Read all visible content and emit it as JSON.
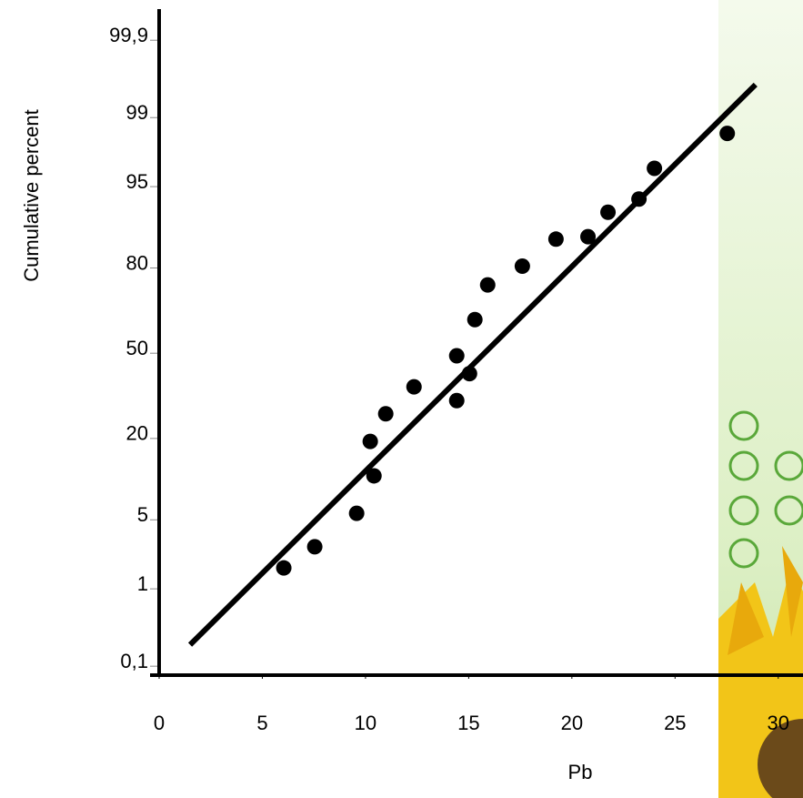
{
  "chart_data": {
    "type": "scatter",
    "y_scale": "probability",
    "x_label": "Pb",
    "y_label": "Cumulative percent",
    "color": "#000000",
    "x": [
      6.04,
      7.54,
      9.57,
      10.41,
      10.23,
      10.98,
      12.35,
      14.42,
      15.04,
      14.42,
      15.3,
      15.92,
      17.6,
      19.23,
      20.78,
      21.75,
      23.25,
      24.0,
      27.53
    ],
    "values": [
      1.7,
      2.8,
      5.7,
      11.3,
      19.2,
      27.5,
      37,
      32,
      42,
      49,
      63,
      75,
      80.5,
      87,
      87.5,
      91.8,
      93.6,
      96.6,
      98.5
    ],
    "fit_line": {
      "x": [
        1.5,
        28.9
      ],
      "values": [
        0.2,
        99.6
      ]
    },
    "xlim": [
      0,
      31.2
    ],
    "ylim": [
      0.074,
      99.966
    ],
    "xticks": [
      0,
      5,
      10,
      15,
      20,
      25,
      30
    ],
    "yticks": [
      {
        "value": 0.1,
        "label": "0,1"
      },
      1,
      5,
      20,
      50,
      80,
      95,
      99,
      {
        "value": 99.9,
        "label": "99,9"
      }
    ],
    "grid": false
  }
}
